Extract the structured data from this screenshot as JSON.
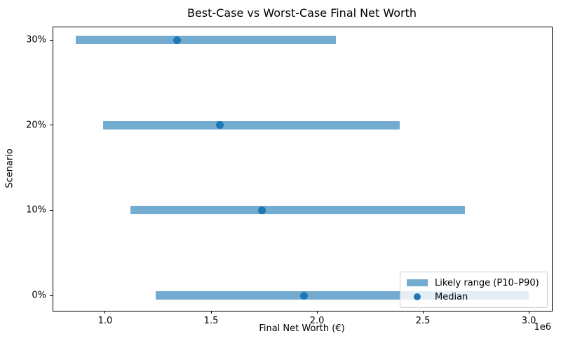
{
  "chart_data": {
    "type": "bar",
    "orientation": "horizontal-range",
    "title": "Best-Case vs Worst-Case Final Net Worth",
    "xlabel": "Final Net Worth (€)",
    "ylabel": "Scenario",
    "x_offset_label": "1e6",
    "xlim": [
      755000,
      3109000
    ],
    "x_ticks": [
      1000000,
      1500000,
      2000000,
      2500000,
      3000000
    ],
    "x_tick_labels": [
      "1.0",
      "1.5",
      "2.0",
      "2.5",
      "3.0"
    ],
    "categories": [
      "30%",
      "20%",
      "10%",
      "0%"
    ],
    "rows": [
      {
        "scenario": "30%",
        "p10": 860000,
        "median": 1340000,
        "p90": 2090000
      },
      {
        "scenario": "20%",
        "p10": 990000,
        "median": 1540000,
        "p90": 2390000
      },
      {
        "scenario": "10%",
        "p10": 1120000,
        "median": 1740000,
        "p90": 2700000
      },
      {
        "scenario": "0%",
        "p10": 1240000,
        "median": 1940000,
        "p90": 3000000
      }
    ],
    "series": [
      {
        "name": "Likely range (P10–P90)",
        "type": "range-bar"
      },
      {
        "name": "Median",
        "type": "dot"
      }
    ],
    "legend_items": [
      "Likely range (P10–P90)",
      "Median"
    ],
    "legend_position": "lower right",
    "grid": false,
    "colors": {
      "range_bar": "#74abd0",
      "median_dot": "#1f77b4",
      "spine": "#000000",
      "legend_border": "#cccccc"
    }
  }
}
